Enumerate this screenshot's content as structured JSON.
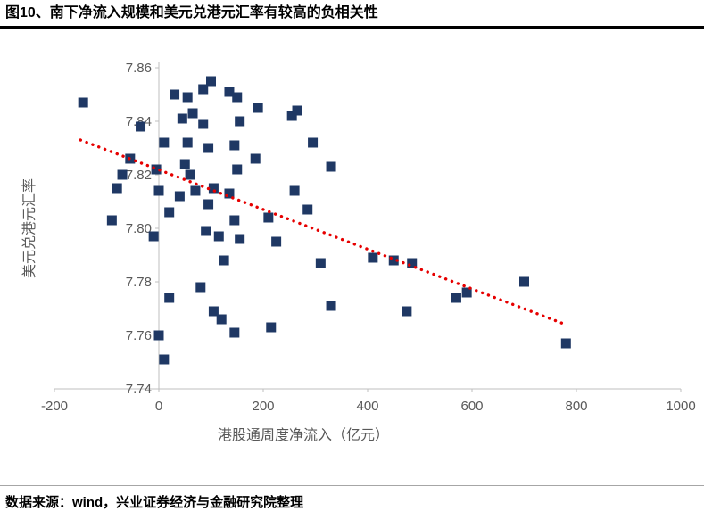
{
  "header": {
    "title": "图10、南下净流入规模和美元兑港元汇率有较高的负相关性"
  },
  "footer": {
    "source": "数据来源：wind，兴业证券经济与金融研究院整理"
  },
  "chart_data": {
    "type": "scatter",
    "title": "",
    "xlabel": "港股通周度净流入（亿元）",
    "ylabel": "美元兑港元汇率",
    "xlim": [
      -200,
      1000
    ],
    "ylim": [
      7.74,
      7.86
    ],
    "x_ticks": [
      -200,
      0,
      200,
      400,
      600,
      800,
      1000
    ],
    "y_ticks": [
      7.74,
      7.76,
      7.78,
      7.8,
      7.82,
      7.84,
      7.86
    ],
    "grid": false,
    "legend": "none",
    "marker": {
      "shape": "square",
      "color": "#1f3864",
      "size": 11
    },
    "axis_color": "#bfbfbf",
    "tick_label_color": "#595959",
    "points": [
      [
        -145,
        7.847
      ],
      [
        -80,
        7.815
      ],
      [
        -90,
        7.803
      ],
      [
        -70,
        7.82
      ],
      [
        -55,
        7.826
      ],
      [
        -35,
        7.838
      ],
      [
        -10,
        7.797
      ],
      [
        -5,
        7.822
      ],
      [
        0,
        7.814
      ],
      [
        0,
        7.76
      ],
      [
        10,
        7.751
      ],
      [
        10,
        7.832
      ],
      [
        20,
        7.774
      ],
      [
        20,
        7.806
      ],
      [
        30,
        7.85
      ],
      [
        45,
        7.841
      ],
      [
        50,
        7.824
      ],
      [
        55,
        7.849
      ],
      [
        55,
        7.832
      ],
      [
        60,
        7.82
      ],
      [
        40,
        7.812
      ],
      [
        65,
        7.843
      ],
      [
        70,
        7.814
      ],
      [
        80,
        7.778
      ],
      [
        85,
        7.852
      ],
      [
        85,
        7.839
      ],
      [
        90,
        7.799
      ],
      [
        95,
        7.83
      ],
      [
        95,
        7.809
      ],
      [
        100,
        7.855
      ],
      [
        105,
        7.815
      ],
      [
        105,
        7.769
      ],
      [
        115,
        7.797
      ],
      [
        120,
        7.766
      ],
      [
        125,
        7.788
      ],
      [
        135,
        7.851
      ],
      [
        135,
        7.813
      ],
      [
        145,
        7.831
      ],
      [
        145,
        7.803
      ],
      [
        145,
        7.761
      ],
      [
        150,
        7.849
      ],
      [
        150,
        7.822
      ],
      [
        155,
        7.84
      ],
      [
        155,
        7.796
      ],
      [
        185,
        7.826
      ],
      [
        190,
        7.845
      ],
      [
        210,
        7.804
      ],
      [
        215,
        7.763
      ],
      [
        225,
        7.795
      ],
      [
        255,
        7.842
      ],
      [
        260,
        7.814
      ],
      [
        265,
        7.844
      ],
      [
        285,
        7.807
      ],
      [
        295,
        7.832
      ],
      [
        310,
        7.787
      ],
      [
        330,
        7.823
      ],
      [
        330,
        7.771
      ],
      [
        410,
        7.789
      ],
      [
        450,
        7.788
      ],
      [
        485,
        7.787
      ],
      [
        475,
        7.769
      ],
      [
        570,
        7.774
      ],
      [
        590,
        7.776
      ],
      [
        700,
        7.78
      ],
      [
        780,
        7.757
      ]
    ],
    "trendline": {
      "style": "dotted",
      "color": "#e60000",
      "from": [
        -150,
        7.833
      ],
      "to": [
        780,
        7.764
      ]
    }
  }
}
